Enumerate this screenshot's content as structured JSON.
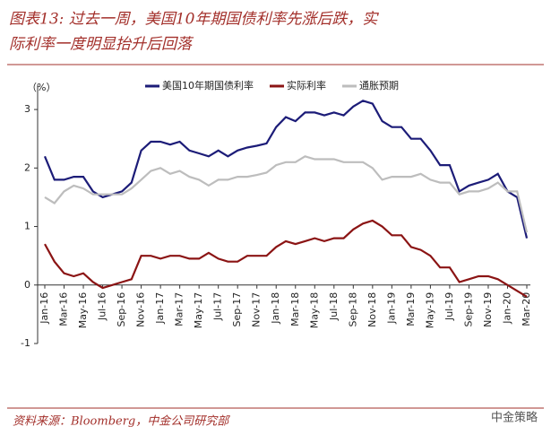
{
  "chart_data": {
    "type": "line",
    "title": [
      "图表13: 过去一周，美国10年期国债利率先涨后跌，实",
      "际利率一度明显抬升后回落"
    ],
    "y_unit_label": "（%）",
    "source": "资料来源：Bloomberg，中金公司研究部",
    "watermark": "中金策略",
    "categories": [
      "Jan-16",
      null,
      "Mar-16",
      null,
      "May-16",
      null,
      "Jul-16",
      null,
      "Sep-16",
      null,
      "Nov-16",
      null,
      "Jan-17",
      null,
      "Mar-17",
      null,
      "May-17",
      null,
      "Jul-17",
      null,
      "Sep-17",
      null,
      "Nov-17",
      null,
      "Jan-18",
      null,
      "Mar-18",
      null,
      "May-18",
      null,
      "Jul-18",
      null,
      "Sep-18",
      null,
      "Nov-18",
      null,
      "Jan-19",
      null,
      "Mar-19",
      null,
      "May-19",
      null,
      "Jul-19",
      null,
      "Sep-19",
      null,
      "Nov-19",
      null,
      "Jan-20",
      null,
      "Mar-20"
    ],
    "series": [
      {
        "name": "美国10年期国债利率",
        "color": "#1c1c78",
        "values": [
          2.2,
          1.8,
          1.8,
          1.85,
          1.85,
          1.6,
          1.5,
          1.55,
          1.6,
          1.75,
          2.3,
          2.45,
          2.45,
          2.4,
          2.45,
          2.3,
          2.25,
          2.2,
          2.3,
          2.2,
          2.3,
          2.35,
          2.38,
          2.42,
          2.7,
          2.87,
          2.8,
          2.95,
          2.95,
          2.9,
          2.95,
          2.9,
          3.05,
          3.15,
          3.1,
          2.8,
          2.7,
          2.7,
          2.5,
          2.5,
          2.3,
          2.05,
          2.05,
          1.6,
          1.7,
          1.75,
          1.8,
          1.9,
          1.6,
          1.5,
          0.8
        ]
      },
      {
        "name": "实际利率",
        "color": "#8b1414",
        "values": [
          0.7,
          0.4,
          0.2,
          0.15,
          0.2,
          0.05,
          -0.05,
          0.0,
          0.05,
          0.1,
          0.5,
          0.5,
          0.45,
          0.5,
          0.5,
          0.45,
          0.45,
          0.55,
          0.45,
          0.4,
          0.4,
          0.5,
          0.5,
          0.5,
          0.65,
          0.75,
          0.7,
          0.75,
          0.8,
          0.75,
          0.8,
          0.8,
          0.95,
          1.05,
          1.1,
          1.0,
          0.85,
          0.85,
          0.65,
          0.6,
          0.5,
          0.3,
          0.3,
          0.05,
          0.1,
          0.15,
          0.15,
          0.1,
          0.0,
          -0.1,
          -0.2
        ]
      },
      {
        "name": "通胀预期",
        "color": "#bdbdbd",
        "values": [
          1.5,
          1.4,
          1.6,
          1.7,
          1.65,
          1.55,
          1.55,
          1.55,
          1.55,
          1.65,
          1.8,
          1.95,
          2.0,
          1.9,
          1.95,
          1.85,
          1.8,
          1.7,
          1.8,
          1.8,
          1.85,
          1.85,
          1.88,
          1.92,
          2.05,
          2.1,
          2.1,
          2.2,
          2.15,
          2.15,
          2.15,
          2.1,
          2.1,
          2.1,
          2.0,
          1.8,
          1.85,
          1.85,
          1.85,
          1.9,
          1.8,
          1.75,
          1.75,
          1.55,
          1.6,
          1.6,
          1.65,
          1.75,
          1.6,
          1.6,
          0.9
        ]
      }
    ],
    "ylim": [
      -1,
      3.4
    ],
    "yticks": [
      -1,
      0,
      1,
      2,
      3
    ],
    "grid": false,
    "legend": "top"
  }
}
